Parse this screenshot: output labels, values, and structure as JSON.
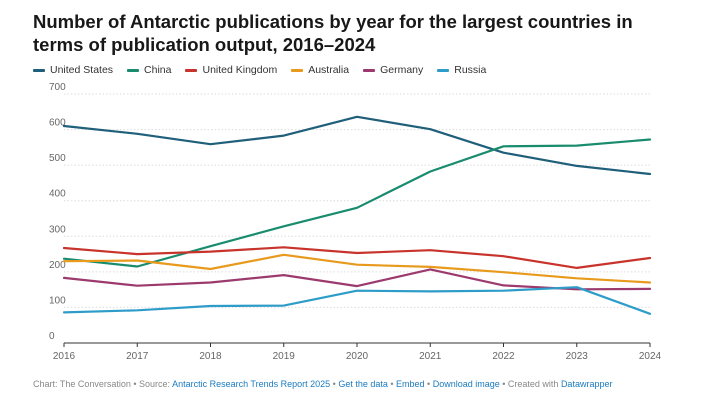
{
  "title": "Number of Antarctic publications by year for the largest countries in terms of publication output, 2016–2024",
  "footer": {
    "prefix": "Chart: The Conversation • Source: ",
    "source": "Antarctic Research Trends Report 2025",
    "sep1": " • ",
    "get_data": "Get the data",
    "sep2": " • ",
    "embed": "Embed",
    "sep3": "  • ",
    "download": "Download image",
    "created": " • Created with ",
    "datawrapper": "Datawrapper"
  },
  "chart_data": {
    "type": "line",
    "x": [
      2016,
      2017,
      2018,
      2019,
      2020,
      2021,
      2022,
      2023,
      2024
    ],
    "x_ticks": [
      "2016",
      "2017",
      "2018",
      "2019",
      "2020",
      "2021",
      "2022",
      "2023",
      "2024"
    ],
    "y_ticks": [
      "0",
      "100",
      "200",
      "300",
      "400",
      "500",
      "600",
      "700"
    ],
    "ylim": [
      0,
      700
    ],
    "xlim": [
      2016,
      2024
    ],
    "grid": true,
    "legend_position": "top-left",
    "series": [
      {
        "name": "United States",
        "color": "#1f5f7a",
        "points": [
          [
            2016,
            610
          ],
          [
            2017,
            588
          ],
          [
            2018,
            559
          ],
          [
            2019,
            583
          ],
          [
            2020,
            636
          ],
          [
            2021,
            601
          ],
          [
            2022,
            535
          ],
          [
            2023,
            498
          ],
          [
            2024,
            475
          ]
        ]
      },
      {
        "name": "China",
        "color": "#1a8c6e",
        "points": [
          [
            2016,
            237
          ],
          [
            2017,
            215
          ],
          [
            2018,
            272
          ],
          [
            2019,
            328
          ],
          [
            2020,
            380
          ],
          [
            2021,
            482
          ],
          [
            2022,
            553
          ],
          [
            2023,
            555
          ],
          [
            2024,
            572
          ]
        ]
      },
      {
        "name": "United Kingdom",
        "color": "#c8332b",
        "points": [
          [
            2016,
            267
          ],
          [
            2017,
            250
          ],
          [
            2018,
            257
          ],
          [
            2019,
            269
          ],
          [
            2020,
            253
          ],
          [
            2021,
            261
          ],
          [
            2022,
            244
          ],
          [
            2023,
            211
          ],
          [
            2024,
            239
          ]
        ]
      },
      {
        "name": "Australia",
        "color": "#e89a1c",
        "points": [
          [
            2016,
            230
          ],
          [
            2017,
            232
          ],
          [
            2018,
            208
          ],
          [
            2019,
            248
          ],
          [
            2020,
            220
          ],
          [
            2021,
            214
          ],
          [
            2022,
            199
          ],
          [
            2023,
            182
          ],
          [
            2024,
            170
          ]
        ]
      },
      {
        "name": "Germany",
        "color": "#9c3a6e",
        "points": [
          [
            2016,
            183
          ],
          [
            2017,
            161
          ],
          [
            2018,
            170
          ],
          [
            2019,
            191
          ],
          [
            2020,
            160
          ],
          [
            2021,
            207
          ],
          [
            2022,
            162
          ],
          [
            2023,
            151
          ],
          [
            2024,
            152
          ]
        ]
      },
      {
        "name": "Russia",
        "color": "#2e9cc8",
        "points": [
          [
            2016,
            86
          ],
          [
            2017,
            92
          ],
          [
            2018,
            104
          ],
          [
            2019,
            105
          ],
          [
            2020,
            147
          ],
          [
            2021,
            145
          ],
          [
            2022,
            147
          ],
          [
            2023,
            157
          ],
          [
            2024,
            82
          ]
        ]
      }
    ]
  }
}
